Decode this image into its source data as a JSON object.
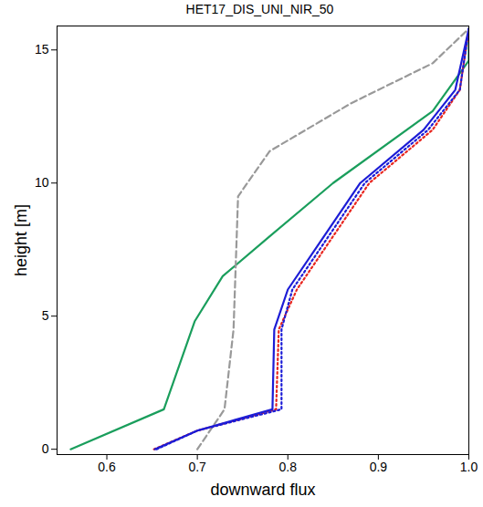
{
  "chart_data": {
    "type": "line",
    "title": "HET17_DIS_UNI_NIR_50",
    "x_label": "downward flux",
    "y_label": "height [m]",
    "xlim": [
      0.545,
      1.0
    ],
    "ylim": [
      -0.2,
      15.9
    ],
    "xticks": [
      0.6,
      0.7,
      0.8,
      0.9,
      {
        "value": 1.0,
        "label": "1.0"
      }
    ],
    "yticks": [
      0,
      5,
      10,
      15
    ],
    "grid": false,
    "series": [
      {
        "color": "#1a9e5c",
        "line_style": "solid",
        "x": [
          0.56,
          0.663,
          0.697,
          0.728,
          0.78,
          0.85,
          0.96,
          1.0,
          1.0
        ],
        "y": [
          0,
          1.5,
          4.8,
          6.5,
          8.0,
          10.0,
          12.7,
          14.6,
          15.8
        ]
      },
      {
        "color": "#999999",
        "line_style": "dashed",
        "x": [
          0.7,
          0.73,
          0.74,
          0.745,
          0.78,
          0.87,
          0.96,
          1.0
        ],
        "y": [
          0,
          1.5,
          4.5,
          9.5,
          11.2,
          13.0,
          14.5,
          15.8
        ]
      },
      {
        "color": "#e8261f",
        "line_style": "dotted",
        "x": [
          0.652,
          0.7,
          0.787,
          0.79,
          0.81,
          0.85,
          0.89,
          0.96,
          0.99,
          1.0
        ],
        "y": [
          0,
          0.7,
          1.5,
          4.5,
          6.0,
          8.0,
          10.0,
          12.0,
          13.5,
          15.8
        ]
      },
      {
        "color": "#1c1cd6",
        "line_style": "dotted",
        "x": [
          0.655,
          0.7,
          0.793,
          0.793,
          0.805,
          0.845,
          0.885,
          0.955,
          0.99,
          1.0
        ],
        "y": [
          0,
          0.7,
          1.5,
          4.5,
          6.0,
          8.0,
          10.0,
          12.0,
          13.5,
          15.8
        ]
      },
      {
        "color": "#1c1cd6",
        "line_style": "solid",
        "x": [
          0.653,
          0.7,
          0.783,
          0.785,
          0.8,
          0.84,
          0.88,
          0.95,
          0.985,
          1.0
        ],
        "y": [
          0,
          0.7,
          1.5,
          4.5,
          6.0,
          8.0,
          10.0,
          12.0,
          13.5,
          15.8
        ]
      }
    ]
  }
}
